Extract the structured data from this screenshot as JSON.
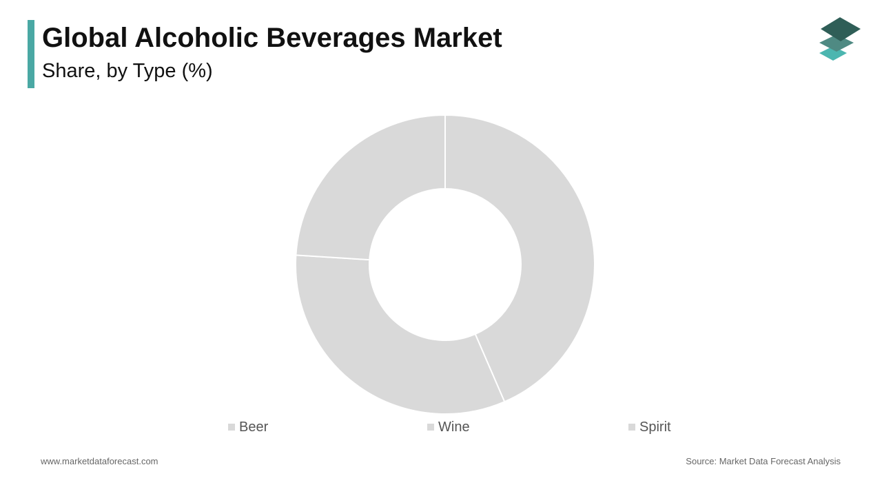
{
  "header": {
    "title": "Global Alcoholic Beverages Market",
    "subtitle": "Share, by Type (%)"
  },
  "chart_data": {
    "type": "pie",
    "style": "donut",
    "title": "Global Alcoholic Beverages Market",
    "subtitle": "Share, by Type (%)",
    "categories": [
      "Beer",
      "Wine",
      "Spirit"
    ],
    "values": [
      43.5,
      32.5,
      24
    ],
    "colors": [
      "#d9d9d9",
      "#d9d9d9",
      "#d9d9d9"
    ],
    "legend_position": "bottom",
    "data_labels": false
  },
  "legend": {
    "items": [
      {
        "label": "Beer",
        "color": "#d9d9d9"
      },
      {
        "label": "Wine",
        "color": "#d9d9d9"
      },
      {
        "label": "Spirit",
        "color": "#d9d9d9"
      }
    ]
  },
  "footer": {
    "website": "www.marketdataforecast.com",
    "source": "Source: Market Data Forecast Analysis"
  },
  "colors": {
    "accent": "#4aa8a4",
    "logo_dark": "#2f5e57",
    "logo_mid": "#4f8a83",
    "logo_light": "#4cb6b0",
    "slice": "#d9d9d9",
    "separator": "#ffffff"
  },
  "icons": {
    "logo": "stacked-layers-logo-icon"
  }
}
